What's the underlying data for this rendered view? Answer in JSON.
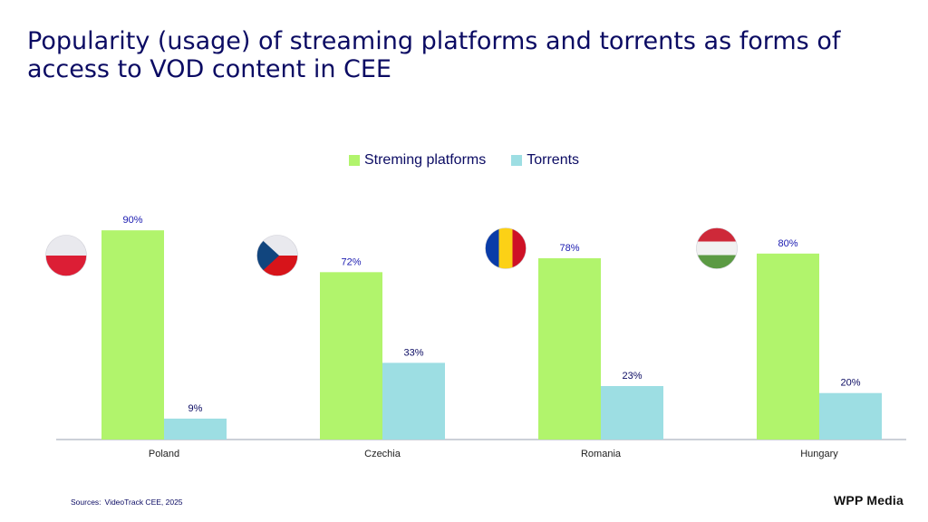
{
  "title": "Popularity (usage) of streaming platforms and torrents as forms of access to VOD content in CEE",
  "source_label": "Sources:",
  "source_text": "VideoTrack CEE, 2025",
  "logo_text": "WPP Media",
  "colors": {
    "streaming": "#b1f46c",
    "torrents": "#9ddee3",
    "title": "#0b0b63",
    "axis": "#9aa0b0"
  },
  "chart_data": {
    "type": "bar",
    "title": "Popularity (usage) of streaming platforms and torrents as forms of access to VOD content in CEE",
    "categories": [
      "Poland",
      "Czechia",
      "Romania",
      "Hungary"
    ],
    "series": [
      {
        "name": "Streming platforms",
        "values": [
          90,
          72,
          78,
          80
        ],
        "labels": [
          "90%",
          "72%",
          "78%",
          "80%"
        ]
      },
      {
        "name": "Torrents",
        "values": [
          9,
          33,
          23,
          20
        ],
        "labels": [
          "9%",
          "33%",
          "23%",
          "20%"
        ]
      }
    ],
    "unit": "%",
    "ylim": [
      0,
      100
    ],
    "grid": false,
    "legend_position": "top-center",
    "flags": [
      "poland-flag-icon",
      "czechia-flag-icon",
      "romania-flag-icon",
      "hungary-flag-icon"
    ]
  }
}
